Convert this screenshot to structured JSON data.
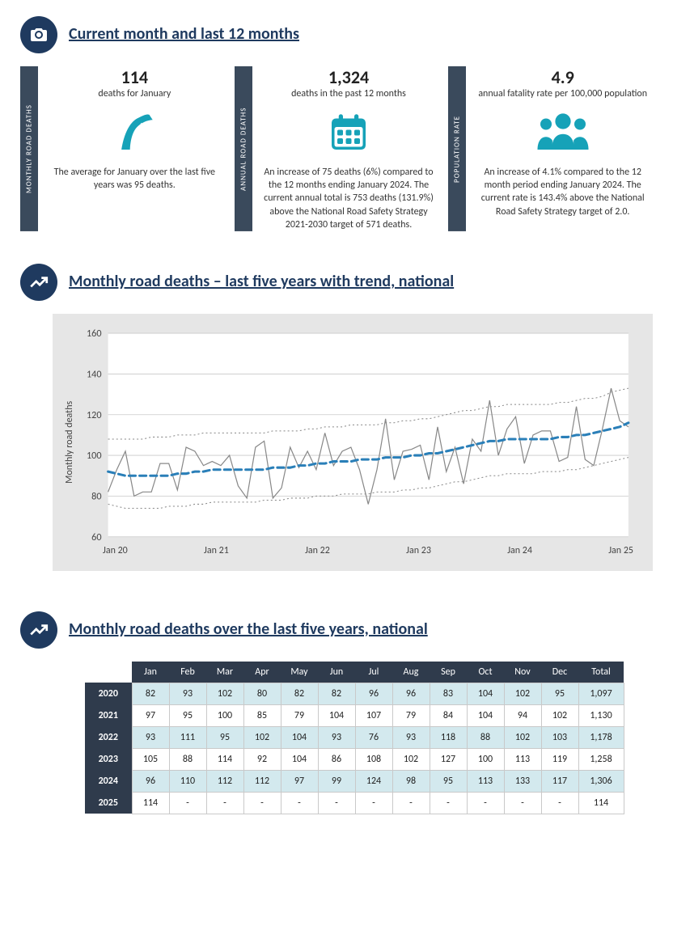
{
  "section1": {
    "title": "Current month and last 12 months",
    "accent": "#16a2b8",
    "navy": "#1f3a5f",
    "stats": [
      {
        "tab": "MONTHLY ROAD  DEATHS",
        "number": "114",
        "label": "deaths for January",
        "desc": "The average for January over the last five years was 95 deaths."
      },
      {
        "tab": "ANNUAL ROAD  DEATHS",
        "number": "1,324",
        "label": "deaths in the past 12 months",
        "desc": "An increase of 75 deaths (6%) compared to the 12 months ending January 2024.  The current annual total is 753 deaths (131.9%) above the National Road Safety Strategy 2021-2030 target of 571 deaths."
      },
      {
        "tab": "POPULATION RATE",
        "number": "4.9",
        "label": "annual fatality rate per 100,000 population",
        "desc": "An increase of 4.1% compared to the 12 month period ending January 2024. The current rate is 143.4% above the National Road Safety Strategy target of 2.0."
      }
    ]
  },
  "section2": {
    "title": "Monthly road deaths – last five years with trend, national",
    "chart": {
      "type": "line",
      "background": "#e6e6e6",
      "plot_bg": "#ffffff",
      "ylabel": "Monthly road deaths",
      "ylim": [
        60,
        160
      ],
      "yticks": [
        60,
        80,
        100,
        120,
        140,
        160
      ],
      "xlabels": [
        "Jan 20",
        "Jan 21",
        "Jan 22",
        "Jan 23",
        "Jan 24",
        "Jan 25"
      ],
      "grid_color": "#c9c9c9",
      "actual_color": "#888888",
      "actual_width": 1.2,
      "trend_color": "#2a7fb8",
      "trend_width": 3,
      "trend_dash": "8,5",
      "band_color": "#888888",
      "band_width": 1,
      "band_dash": "2,3",
      "actual": [
        82,
        93,
        102,
        80,
        82,
        82,
        96,
        96,
        83,
        104,
        102,
        95,
        97,
        95,
        100,
        85,
        79,
        104,
        107,
        79,
        84,
        104,
        94,
        102,
        93,
        111,
        95,
        102,
        104,
        93,
        76,
        93,
        118,
        88,
        102,
        103,
        105,
        88,
        114,
        92,
        104,
        86,
        108,
        102,
        127,
        100,
        113,
        119,
        96,
        110,
        112,
        112,
        97,
        99,
        124,
        98,
        95,
        113,
        133,
        117,
        114
      ],
      "trend": [
        92,
        91,
        90,
        90,
        90,
        90,
        90,
        90,
        91,
        91,
        92,
        92,
        93,
        93,
        93,
        93,
        93,
        93,
        93,
        94,
        94,
        94,
        95,
        95,
        96,
        96,
        97,
        97,
        97,
        98,
        98,
        98,
        99,
        99,
        99,
        100,
        100,
        101,
        101,
        102,
        103,
        104,
        105,
        106,
        107,
        107,
        108,
        108,
        108,
        108,
        108,
        108,
        109,
        109,
        110,
        110,
        111,
        112,
        113,
        114,
        116
      ],
      "upper": [
        108,
        108,
        108,
        108,
        108,
        109,
        109,
        109,
        110,
        110,
        110,
        111,
        111,
        111,
        111,
        111,
        111,
        111,
        111,
        112,
        112,
        112,
        112,
        113,
        113,
        114,
        114,
        114,
        115,
        115,
        115,
        115,
        116,
        116,
        117,
        117,
        118,
        118,
        119,
        120,
        121,
        122,
        122,
        123,
        124,
        124,
        125,
        125,
        125,
        125,
        125,
        125,
        126,
        126,
        127,
        128,
        128,
        129,
        131,
        132,
        133
      ],
      "lower": [
        76,
        75,
        74,
        74,
        74,
        74,
        74,
        75,
        75,
        75,
        76,
        76,
        77,
        77,
        77,
        77,
        77,
        77,
        78,
        78,
        78,
        79,
        79,
        79,
        80,
        80,
        80,
        81,
        81,
        81,
        81,
        82,
        82,
        82,
        83,
        83,
        84,
        84,
        85,
        86,
        87,
        87,
        88,
        89,
        90,
        90,
        91,
        91,
        91,
        91,
        92,
        92,
        92,
        93,
        93,
        94,
        95,
        96,
        97,
        98,
        99
      ]
    }
  },
  "section3": {
    "title": "Monthly road deaths over the last five years, national",
    "table": {
      "header_bg": "#2f3b4c",
      "header_color": "#ffffff",
      "alt_row_bg": "#d3e9ee",
      "border_color": "#c9c9c9",
      "columns": [
        "Jan",
        "Feb",
        "Mar",
        "Apr",
        "May",
        "Jun",
        "Jul",
        "Aug",
        "Sep",
        "Oct",
        "Nov",
        "Dec",
        "Total"
      ],
      "rows": [
        {
          "year": "2020",
          "alt": true,
          "cells": [
            "82",
            "93",
            "102",
            "80",
            "82",
            "82",
            "96",
            "96",
            "83",
            "104",
            "102",
            "95",
            "1,097"
          ]
        },
        {
          "year": "2021",
          "alt": false,
          "cells": [
            "97",
            "95",
            "100",
            "85",
            "79",
            "104",
            "107",
            "79",
            "84",
            "104",
            "94",
            "102",
            "1,130"
          ]
        },
        {
          "year": "2022",
          "alt": true,
          "cells": [
            "93",
            "111",
            "95",
            "102",
            "104",
            "93",
            "76",
            "93",
            "118",
            "88",
            "102",
            "103",
            "1,178"
          ]
        },
        {
          "year": "2023",
          "alt": false,
          "cells": [
            "105",
            "88",
            "114",
            "92",
            "104",
            "86",
            "108",
            "102",
            "127",
            "100",
            "113",
            "119",
            "1,258"
          ]
        },
        {
          "year": "2024",
          "alt": true,
          "cells": [
            "96",
            "110",
            "112",
            "112",
            "97",
            "99",
            "124",
            "98",
            "95",
            "113",
            "133",
            "117",
            "1,306"
          ]
        },
        {
          "year": "2025",
          "alt": false,
          "cells": [
            "114",
            "-",
            "-",
            "-",
            "-",
            "-",
            "-",
            "-",
            "-",
            "-",
            "-",
            "-",
            "114"
          ]
        }
      ]
    }
  }
}
